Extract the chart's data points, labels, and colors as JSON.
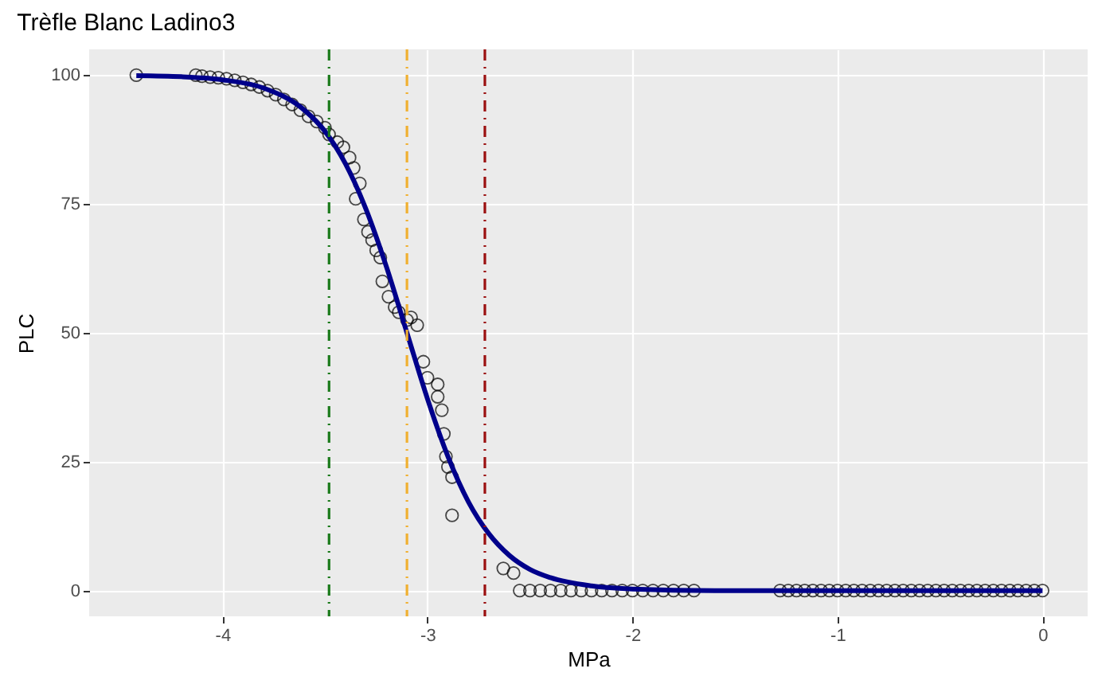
{
  "chart_data": {
    "type": "scatter",
    "title": "Trèfle Blanc Ladino3",
    "xlabel": "MPa",
    "ylabel": "PLC",
    "xlim": [
      -4.65,
      0.22
    ],
    "ylim": [
      -5,
      105
    ],
    "xticks": [
      -4,
      -3,
      -2,
      -1,
      0
    ],
    "yticks": [
      0,
      25,
      50,
      75,
      100
    ],
    "grid": true,
    "series": [
      {
        "marker": "circle",
        "color": "#000000",
        "x": [
          -4.42,
          -4.13,
          -4.1,
          -4.06,
          -4.02,
          -3.98,
          -3.94,
          -3.9,
          -3.86,
          -3.82,
          -3.78,
          -3.74,
          -3.7,
          -3.66,
          -3.62,
          -3.58,
          -3.54,
          -3.5,
          -3.48,
          -3.44,
          -3.41,
          -3.38,
          -3.36,
          -3.33,
          -3.35,
          -3.31,
          -3.29,
          -3.27,
          -3.25,
          -3.23,
          -3.22,
          -3.19,
          -3.16,
          -3.14,
          -3.1,
          -3.08,
          -3.05,
          -3.02,
          -3.0,
          -2.95,
          -2.95,
          -2.93,
          -2.92,
          -2.91,
          -2.9,
          -2.88,
          -2.88,
          -2.63,
          -2.58,
          -2.55,
          -2.5,
          -2.45,
          -2.4,
          -2.35,
          -2.3,
          -2.25,
          -2.2,
          -2.15,
          -2.1,
          -2.05,
          -2.0,
          -1.95,
          -1.9,
          -1.85,
          -1.8,
          -1.75,
          -1.7,
          -1.28,
          -1.24,
          -1.2,
          -1.16,
          -1.12,
          -1.08,
          -1.04,
          -1.0,
          -0.96,
          -0.92,
          -0.88,
          -0.84,
          -0.8,
          -0.76,
          -0.72,
          -0.68,
          -0.64,
          -0.6,
          -0.56,
          -0.52,
          -0.48,
          -0.44,
          -0.4,
          -0.36,
          -0.32,
          -0.28,
          -0.24,
          -0.2,
          -0.16,
          -0.12,
          -0.08,
          -0.04,
          0.0
        ],
        "values": [
          100,
          100,
          99.8,
          99.6,
          99.5,
          99.3,
          99,
          98.6,
          98.2,
          97.7,
          97,
          96.2,
          95.3,
          94.3,
          93.2,
          92,
          91,
          89.8,
          88.5,
          87,
          86,
          84,
          82,
          79,
          76,
          72,
          69.6,
          68,
          66,
          64.6,
          60,
          57,
          55,
          54,
          52.5,
          53,
          51.5,
          44.4,
          41.3,
          40,
          37.6,
          35,
          30.4,
          26,
          24,
          22,
          14.6,
          4.3,
          3.4,
          0,
          0,
          0,
          0,
          0,
          0,
          0,
          0,
          0,
          0,
          0,
          0,
          0,
          0,
          0,
          0,
          0,
          0,
          0,
          0,
          0,
          0,
          0,
          0,
          0,
          0,
          0,
          0,
          0,
          0,
          0,
          0,
          0,
          0,
          0,
          0,
          0,
          0,
          0,
          0,
          0,
          0,
          0,
          0,
          0,
          0,
          0,
          0,
          0,
          0,
          0
        ]
      },
      {
        "type": "line",
        "color": "#00008b",
        "x": [
          -4.42,
          -4.2,
          -4.0,
          -3.8,
          -3.6,
          -3.5,
          -3.4,
          -3.3,
          -3.2,
          -3.1,
          -3.0,
          -2.9,
          -2.8,
          -2.7,
          -2.6,
          -2.5,
          -2.4,
          -2.2,
          -2.0,
          -1.6,
          -1.0,
          0.0
        ],
        "values": [
          99.9,
          99.7,
          99.1,
          97.5,
          93.2,
          89.1,
          82.8,
          74.0,
          62.8,
          50,
          37.2,
          26.0,
          17.2,
          11.0,
          6.8,
          4.1,
          2.5,
          0.9,
          0.3,
          0,
          0,
          0
        ]
      }
    ],
    "ref_lines": [
      {
        "axis": "x",
        "value": -3.48,
        "color": "#1a7a1a",
        "line_style": "dashed"
      },
      {
        "axis": "x",
        "value": -3.1,
        "color": "#f0b030",
        "line_style": "dashed"
      },
      {
        "axis": "x",
        "value": -2.72,
        "color": "#9b1010",
        "line_style": "dashed"
      }
    ]
  }
}
